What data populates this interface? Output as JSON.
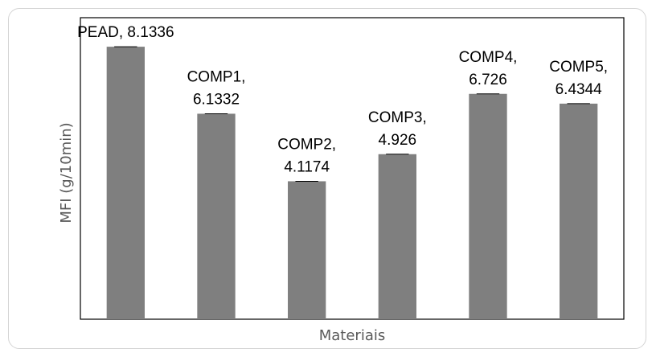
{
  "chart_data": {
    "type": "bar",
    "categories": [
      "PEAD",
      "COMP1",
      "COMP2",
      "COMP3",
      "COMP4",
      "COMP5"
    ],
    "values": [
      8.1336,
      6.1332,
      4.1174,
      4.926,
      6.726,
      6.4344
    ],
    "data_labels": [
      [
        "PEAD, 8.1336"
      ],
      [
        "COMP1,",
        "6.1332"
      ],
      [
        "COMP2,",
        "4.1174"
      ],
      [
        "COMP3,",
        "4.926"
      ],
      [
        "COMP4,",
        "6.726"
      ],
      [
        "COMP5,",
        "6.4344"
      ]
    ],
    "xlabel": "Materiais",
    "ylabel": "MFI (g/10min)",
    "ylim": [
      0,
      9
    ],
    "grid": false,
    "legend": false,
    "error_bars": true,
    "bar_color": "#7f7f7f"
  }
}
